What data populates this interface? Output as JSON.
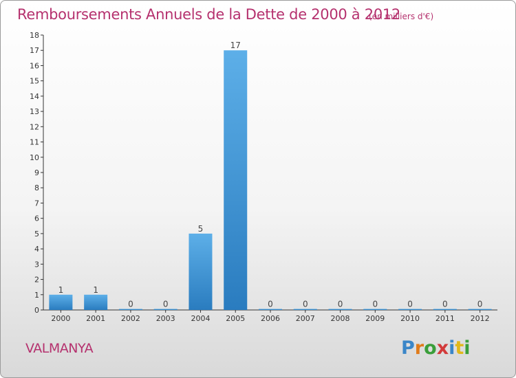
{
  "header": {
    "title": "Remboursements Annuels de la Dette de 2000 à 2012",
    "unit": "(en milliers d'€)"
  },
  "footer": {
    "commune": "VALMANYA",
    "logo_text": "Proxiti",
    "logo_letters": [
      {
        "ch": "P",
        "color": "#3a86c8"
      },
      {
        "ch": "r",
        "color": "#e07b1a"
      },
      {
        "ch": "o",
        "color": "#3a9e3a"
      },
      {
        "ch": "x",
        "color": "#d23a3a"
      },
      {
        "ch": "i",
        "color": "#3a86c8"
      },
      {
        "ch": "t",
        "color": "#e0b81a"
      },
      {
        "ch": "i",
        "color": "#3a9e3a"
      }
    ]
  },
  "colors": {
    "title": "#b5316e",
    "bar_light": "#5dafe8",
    "bar_dark": "#2a7cbf",
    "axis": "#333333"
  },
  "chart_data": {
    "type": "bar",
    "title": "Remboursements Annuels de la Dette de 2000 à 2012",
    "ylabel": "",
    "xlabel": "",
    "categories": [
      "2000",
      "2001",
      "2002",
      "2003",
      "2004",
      "2005",
      "2006",
      "2007",
      "2008",
      "2009",
      "2010",
      "2011",
      "2012"
    ],
    "values": [
      1,
      1,
      0,
      0,
      5,
      17,
      0,
      0,
      0,
      0,
      0,
      0,
      0
    ],
    "ylim": [
      0,
      18
    ],
    "yticks": [
      "0",
      "1",
      "2",
      "3",
      "4",
      "5",
      "6",
      "7",
      "8",
      "9",
      "10",
      "11",
      "12",
      "13",
      "14",
      "15",
      "16",
      "17",
      "18"
    ],
    "grid": false
  }
}
